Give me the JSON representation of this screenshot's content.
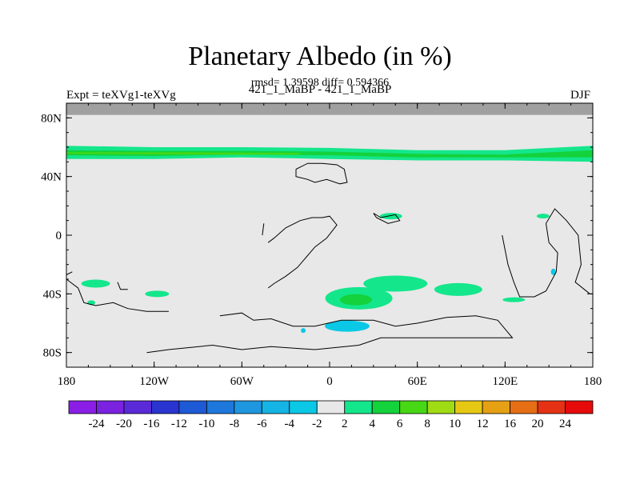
{
  "chart_data": {
    "type": "heatmap",
    "title": "Planetary Albedo (in %)",
    "stats_line": "rmsd= 1.39598 diff= 0.594366",
    "left_label": "Expt = teXVg1-teXVg",
    "center_label": "421_1_MaBP - 421_1_MaBP",
    "right_label": "DJF",
    "projection": "cylindrical equidistant",
    "xlim": [
      -180,
      180
    ],
    "ylim": [
      -90,
      90
    ],
    "x_ticks": [
      {
        "value": -180,
        "label": "180"
      },
      {
        "value": -120,
        "label": "120W"
      },
      {
        "value": -60,
        "label": "60W"
      },
      {
        "value": 0,
        "label": "0"
      },
      {
        "value": 60,
        "label": "60E"
      },
      {
        "value": 120,
        "label": "120E"
      },
      {
        "value": 180,
        "label": "180"
      }
    ],
    "y_ticks": [
      {
        "value": 80,
        "label": "80N"
      },
      {
        "value": 40,
        "label": "40N"
      },
      {
        "value": 0,
        "label": "0"
      },
      {
        "value": -40,
        "label": "40S"
      },
      {
        "value": -80,
        "label": "80S"
      }
    ],
    "background_value_range": [
      -2,
      2
    ],
    "missing_region_lat_min": 82,
    "colorbar": {
      "levels": [
        "-24",
        "-20",
        "-16",
        "-12",
        "-10",
        "-8",
        "-6",
        "-4",
        "-2",
        "2",
        "4",
        "6",
        "8",
        "10",
        "12",
        "16",
        "20",
        "24"
      ],
      "colors": [
        "#8a1ee6",
        "#7a22e0",
        "#5a2ad8",
        "#2a34d0",
        "#1e5ad6",
        "#1e78dc",
        "#1e96e0",
        "#14b4e4",
        "#0ac8e6",
        "#e8e8e8",
        "#14e68c",
        "#14d23c",
        "#46d814",
        "#a0dc14",
        "#e6c814",
        "#e6a014",
        "#e66e14",
        "#e63214",
        "#e60a0a"
      ]
    },
    "anomaly_regions": [
      {
        "name": "northern-green-band",
        "lon": [
          -180,
          180
        ],
        "lat": [
          50,
          60
        ],
        "value_range": [
          4,
          8
        ]
      },
      {
        "name": "south-atlantic-green",
        "lon": [
          0,
          30
        ],
        "lat": [
          -50,
          -35
        ],
        "value_range": [
          4,
          6
        ]
      },
      {
        "name": "south-atlantic-blue",
        "lon": [
          0,
          25
        ],
        "lat": [
          -65,
          -58
        ],
        "value_range": [
          -4,
          -2
        ]
      },
      {
        "name": "south-pacific-green",
        "lon": [
          -170,
          -145
        ],
        "lat": [
          -40,
          -30
        ],
        "value_range": [
          2,
          4
        ]
      },
      {
        "name": "indian-ocean-green",
        "lon": [
          35,
          110
        ],
        "lat": [
          -48,
          -28
        ],
        "value_range": [
          2,
          6
        ]
      }
    ]
  }
}
